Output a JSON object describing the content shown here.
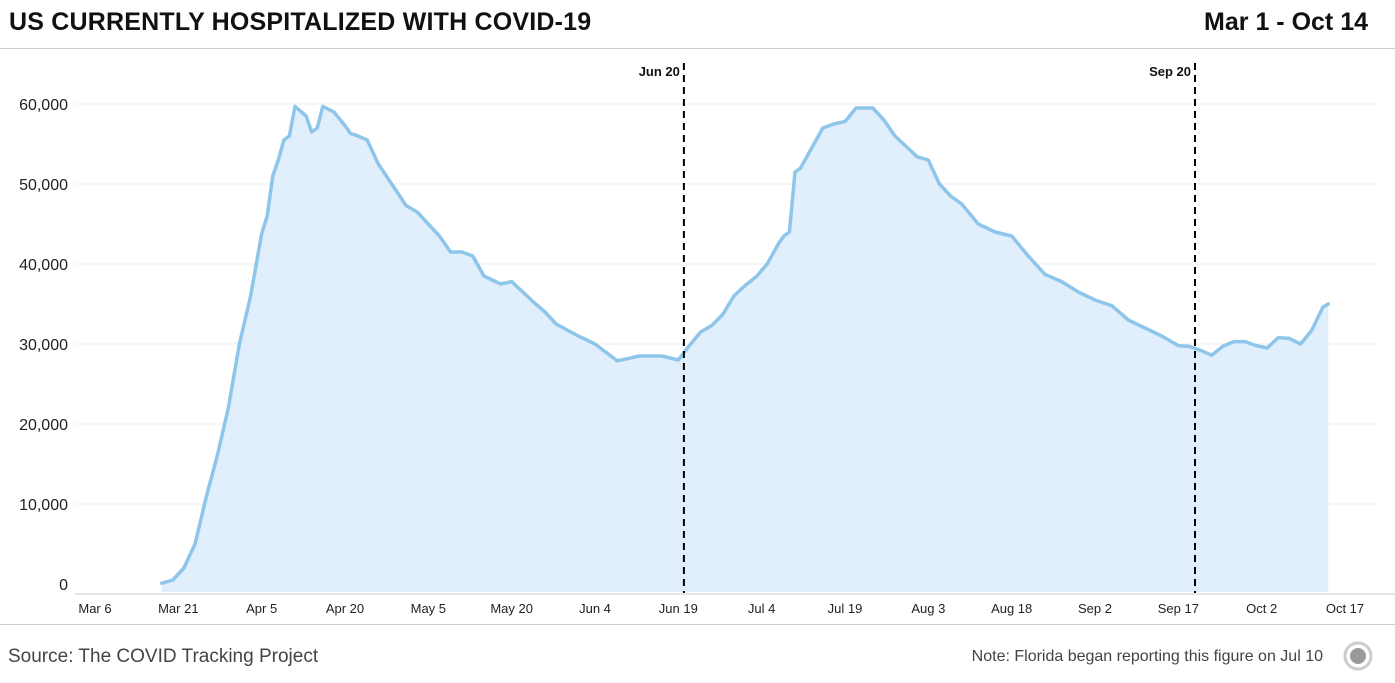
{
  "header": {
    "title": "US CURRENTLY HOSPITALIZED WITH COVID-19",
    "date_range": "Mar 1 - Oct 14"
  },
  "footer": {
    "source": "Source: The COVID Tracking Project",
    "note": "Note: Florida began reporting this figure on Jul 10"
  },
  "logo": {
    "icon": "covid-tracking-logo-icon"
  },
  "colors": {
    "line": "#8ec5ea",
    "fill": "#e1eefb",
    "grid": "#ececec",
    "marker": "#000000"
  },
  "chart_data": {
    "type": "area",
    "title": "US CURRENTLY HOSPITALIZED WITH COVID-19",
    "xlabel": "",
    "ylabel": "",
    "x_start": "Mar 1",
    "x_end": "Oct 14",
    "xlim": [
      "Mar 6",
      "Oct 17"
    ],
    "ylim": [
      0,
      60000
    ],
    "grid": true,
    "y_ticks": [
      {
        "value": 0,
        "label": "0"
      },
      {
        "value": 10000,
        "label": "10,000"
      },
      {
        "value": 20000,
        "label": "20,000"
      },
      {
        "value": 30000,
        "label": "30,000"
      },
      {
        "value": 40000,
        "label": "40,000"
      },
      {
        "value": 50000,
        "label": "50,000"
      },
      {
        "value": 60000,
        "label": "60,000"
      }
    ],
    "x_ticks": [
      "Mar 6",
      "Mar 21",
      "Apr 5",
      "Apr 20",
      "May 5",
      "May 20",
      "Jun 4",
      "Jun 19",
      "Jul 4",
      "Jul 19",
      "Aug 3",
      "Aug 18",
      "Sep 2",
      "Sep 17",
      "Oct 2",
      "Oct 17"
    ],
    "annotations": [
      {
        "x": "Jun 20",
        "label": "Jun 20",
        "style": "dashed"
      },
      {
        "x": "Sep 20",
        "label": "Sep 20",
        "style": "dashed"
      }
    ],
    "series": [
      {
        "x": [
          "Mar 18",
          "Mar 20",
          "Mar 22",
          "Mar 24",
          "Mar 26",
          "Mar 28",
          "Mar 30",
          "Apr 1",
          "Apr 3",
          "Apr 5",
          "Apr 6",
          "Apr 7",
          "Apr 8",
          "Apr 9",
          "Apr 10",
          "Apr 11",
          "Apr 13",
          "Apr 14",
          "Apr 15",
          "Apr 16",
          "Apr 18",
          "Apr 20",
          "Apr 21",
          "Apr 22",
          "Apr 24",
          "Apr 26",
          "May 1",
          "May 3",
          "May 5",
          "May 7",
          "May 9",
          "May 11",
          "May 13",
          "May 15",
          "May 18",
          "May 20",
          "May 22",
          "May 24",
          "May 26",
          "May 28",
          "Jun 1",
          "Jun 4",
          "Jun 8",
          "Jun 12",
          "Jun 16",
          "Jun 19",
          "Jun 21",
          "Jun 23",
          "Jun 25",
          "Jun 27",
          "Jun 29",
          "Jul 1",
          "Jul 3",
          "Jul 5",
          "Jul 7",
          "Jul 8",
          "Jul 9",
          "Jul 10",
          "Jul 11",
          "Jul 13",
          "Jul 15",
          "Jul 17",
          "Jul 19",
          "Jul 21",
          "Jul 24",
          "Jul 26",
          "Jul 28",
          "Jul 30",
          "Aug 1",
          "Aug 3",
          "Aug 5",
          "Aug 7",
          "Aug 9",
          "Aug 12",
          "Aug 15",
          "Aug 18",
          "Aug 21",
          "Aug 24",
          "Aug 27",
          "Aug 30",
          "Sep 2",
          "Sep 5",
          "Sep 8",
          "Sep 11",
          "Sep 14",
          "Sep 17",
          "Sep 19",
          "Sep 21",
          "Sep 23",
          "Sep 25",
          "Sep 27",
          "Sep 29",
          "Oct 1",
          "Oct 3",
          "Oct 5",
          "Oct 7",
          "Oct 9",
          "Oct 11",
          "Oct 13",
          "Oct 14"
        ],
        "values": [
          100,
          500,
          2000,
          5000,
          10800,
          16000,
          22000,
          30000,
          36000,
          43800,
          46000,
          51000,
          53000,
          55500,
          56000,
          59700,
          58500,
          56500,
          57000,
          59700,
          59000,
          57300,
          56300,
          56100,
          55500,
          52500,
          47300,
          46500,
          45000,
          43500,
          41500,
          41500,
          41000,
          38500,
          37500,
          37800,
          36500,
          35200,
          34000,
          32500,
          31000,
          30000,
          27900,
          28500,
          28500,
          28000,
          29800,
          31500,
          32300,
          33700,
          36000,
          37300,
          38400,
          40000,
          42500,
          43500,
          44000,
          51500,
          52000,
          54500,
          57000,
          57500,
          57800,
          59500,
          59500,
          58000,
          56000,
          54700,
          53400,
          53000,
          50000,
          48500,
          47500,
          45000,
          44000,
          43500,
          41000,
          38700,
          37800,
          36500,
          35500,
          34800,
          33000,
          32000,
          31000,
          29800,
          29700,
          29200,
          28600,
          29700,
          30300,
          30300,
          29800,
          29500,
          30800,
          30700,
          30000,
          31700,
          34600,
          35000
        ]
      }
    ]
  }
}
